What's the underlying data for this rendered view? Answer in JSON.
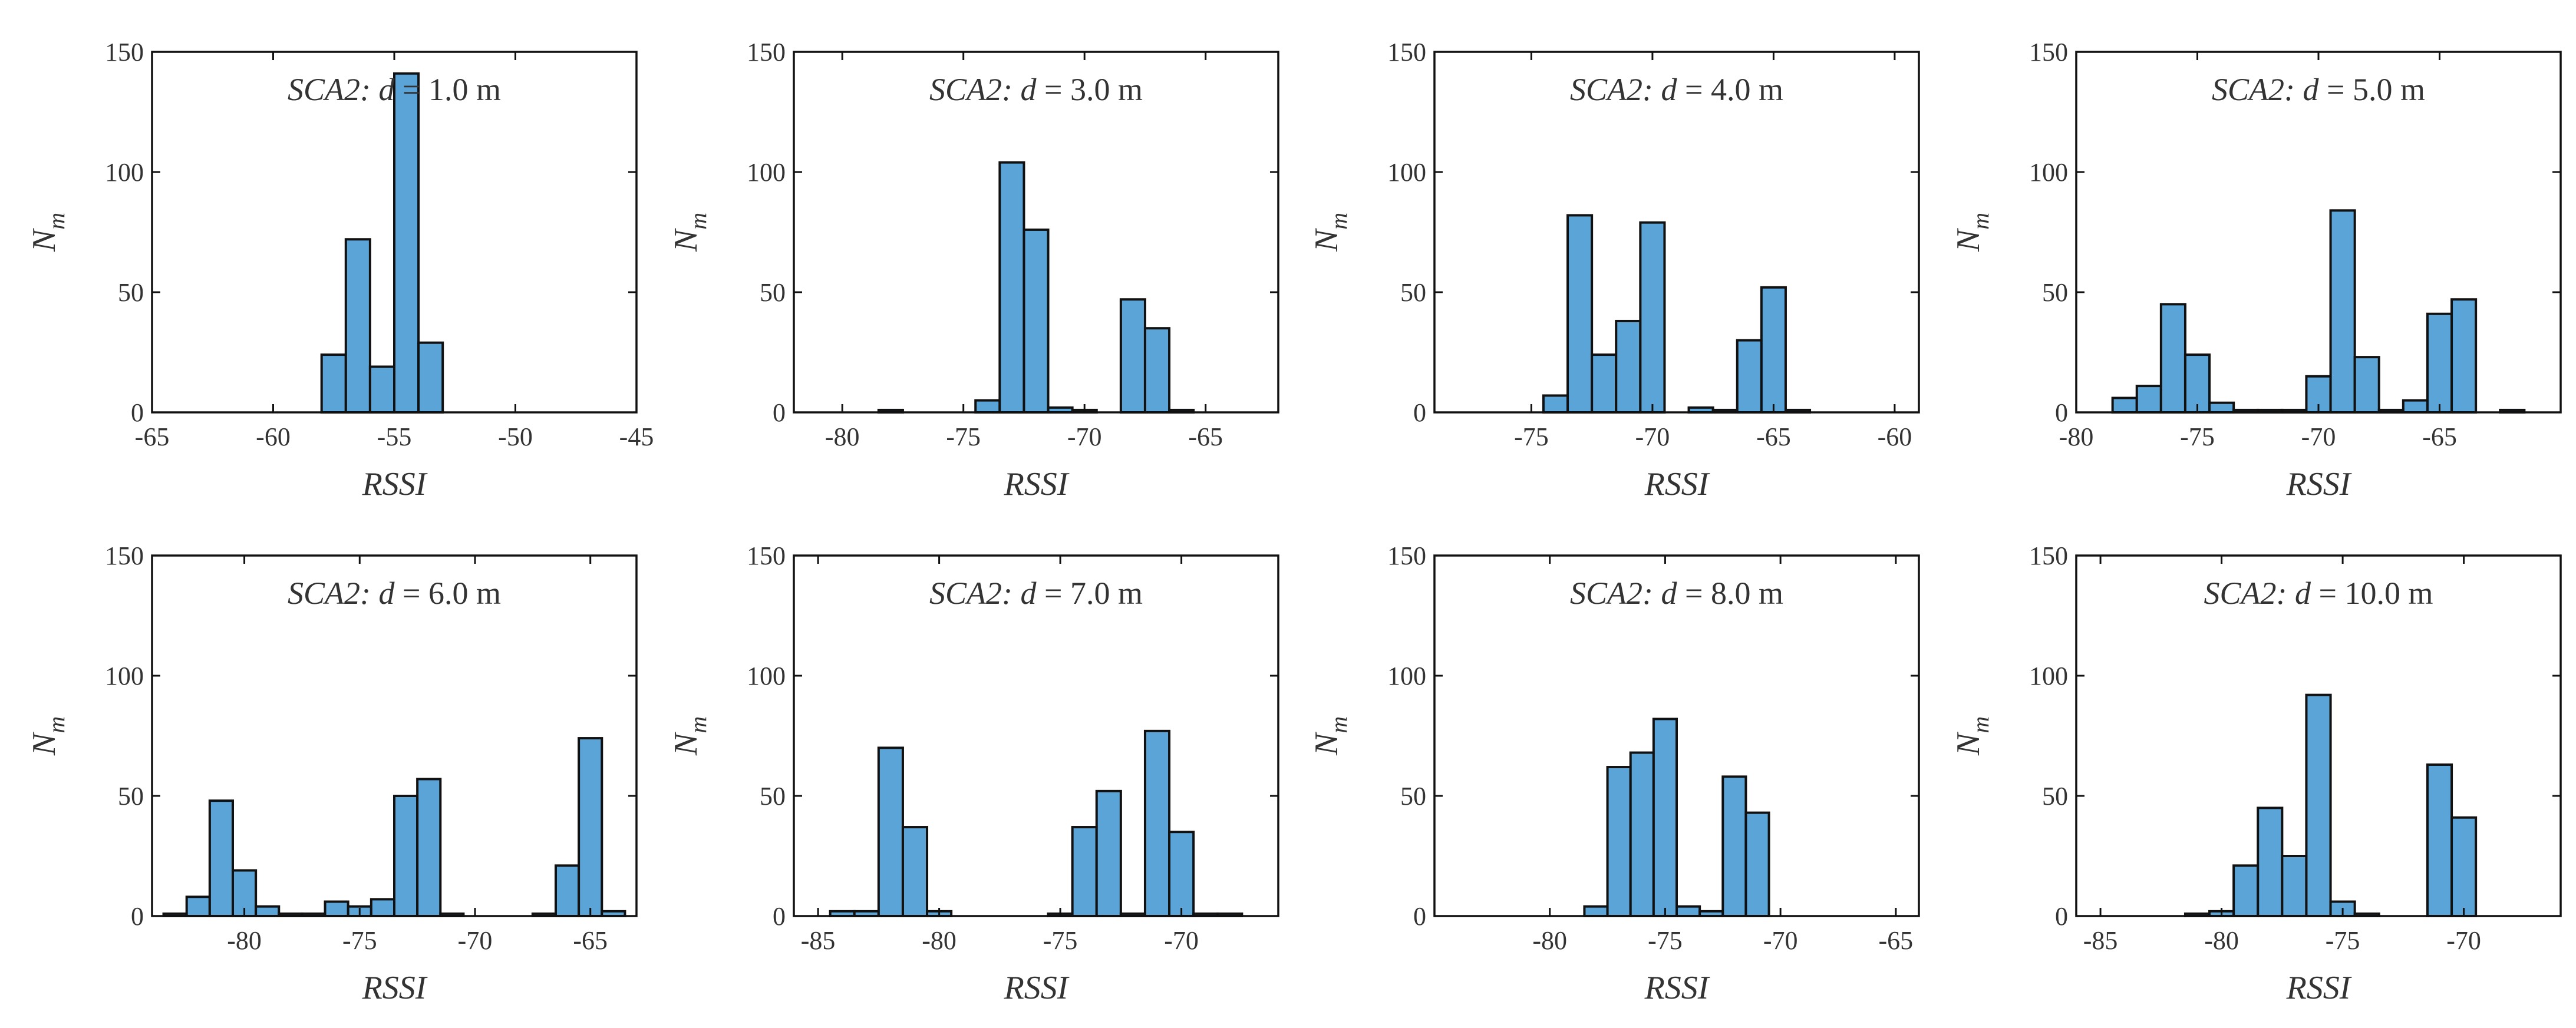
{
  "figure": {
    "subtitle_prefix": "SCA2:",
    "d_symbol": "d",
    "eq_sign": "=",
    "unit": "m"
  },
  "colors": {
    "bar_fill": "#5aa4d8",
    "bar_edge": "#111111",
    "axes": "#111111",
    "text": "#333333"
  },
  "chart_data": [
    {
      "type": "bar",
      "title": "SCA2: d = 1.0 m",
      "distance": "1.0",
      "xlabel": "RSSI",
      "ylabel": "N",
      "ylabel_sub": "m",
      "xlim": [
        -65,
        -45
      ],
      "ylim": [
        0,
        150
      ],
      "xticks": [
        -65,
        -60,
        -55,
        -50,
        -45
      ],
      "yticks": [
        0,
        50,
        100,
        150
      ],
      "bin_width": 1,
      "bins": [
        [
          -57.5,
          24
        ],
        [
          -56.5,
          72
        ],
        [
          -55.5,
          19
        ],
        [
          -54.5,
          141
        ],
        [
          -53.5,
          29
        ]
      ]
    },
    {
      "type": "bar",
      "title": "SCA2: d = 3.0 m",
      "distance": "3.0",
      "xlabel": "RSSI",
      "ylabel": "N",
      "ylabel_sub": "m",
      "xlim": [
        -82,
        -62
      ],
      "ylim": [
        0,
        150
      ],
      "xticks": [
        -80,
        -75,
        -70,
        -65
      ],
      "yticks": [
        0,
        50,
        100,
        150
      ],
      "bin_width": 1,
      "bins": [
        [
          -78,
          1
        ],
        [
          -74,
          5
        ],
        [
          -73,
          104
        ],
        [
          -72,
          76
        ],
        [
          -71,
          2
        ],
        [
          -70,
          1
        ],
        [
          -68,
          47
        ],
        [
          -67,
          35
        ],
        [
          -66,
          1
        ]
      ]
    },
    {
      "type": "bar",
      "title": "SCA2: d = 4.0 m",
      "distance": "4.0",
      "xlabel": "RSSI",
      "ylabel": "N",
      "ylabel_sub": "m",
      "xlim": [
        -79,
        -59
      ],
      "ylim": [
        0,
        150
      ],
      "xticks": [
        -75,
        -70,
        -65,
        -60
      ],
      "yticks": [
        0,
        50,
        100,
        150
      ],
      "bin_width": 1,
      "bins": [
        [
          -74,
          7
        ],
        [
          -73,
          82
        ],
        [
          -72,
          24
        ],
        [
          -71,
          38
        ],
        [
          -70,
          79
        ],
        [
          -68,
          2
        ],
        [
          -67,
          1
        ],
        [
          -66,
          30
        ],
        [
          -65,
          52
        ],
        [
          -64,
          1
        ]
      ]
    },
    {
      "type": "bar",
      "title": "SCA2: d = 5.0 m",
      "distance": "5.0",
      "xlabel": "RSSI",
      "ylabel": "N",
      "ylabel_sub": "m",
      "xlim": [
        -80,
        -60
      ],
      "ylim": [
        0,
        150
      ],
      "xticks": [
        -80,
        -75,
        -70,
        -65
      ],
      "yticks": [
        0,
        50,
        100,
        150
      ],
      "bin_width": 1,
      "bins": [
        [
          -78,
          6
        ],
        [
          -77,
          11
        ],
        [
          -76,
          45
        ],
        [
          -75,
          24
        ],
        [
          -74,
          4
        ],
        [
          -73,
          1
        ],
        [
          -72,
          1
        ],
        [
          -71,
          1
        ],
        [
          -70,
          15
        ],
        [
          -69,
          84
        ],
        [
          -68,
          23
        ],
        [
          -67,
          1
        ],
        [
          -66,
          5
        ],
        [
          -65,
          41
        ],
        [
          -64,
          47
        ],
        [
          -62,
          1
        ]
      ]
    },
    {
      "type": "bar",
      "title": "SCA2: d = 6.0 m",
      "distance": "6.0",
      "xlabel": "RSSI",
      "ylabel": "N",
      "ylabel_sub": "m",
      "xlim": [
        -84,
        -63
      ],
      "ylim": [
        0,
        150
      ],
      "xticks": [
        -80,
        -75,
        -70,
        -65
      ],
      "yticks": [
        0,
        50,
        100,
        150
      ],
      "bin_width": 1,
      "bins": [
        [
          -83,
          1
        ],
        [
          -82,
          8
        ],
        [
          -81,
          48
        ],
        [
          -80,
          19
        ],
        [
          -79,
          4
        ],
        [
          -78,
          1
        ],
        [
          -77,
          1
        ],
        [
          -76,
          6
        ],
        [
          -75,
          4
        ],
        [
          -74,
          7
        ],
        [
          -73,
          50
        ],
        [
          -72,
          57
        ],
        [
          -71,
          1
        ],
        [
          -67,
          1
        ],
        [
          -66,
          21
        ],
        [
          -65,
          74
        ],
        [
          -64,
          2
        ]
      ]
    },
    {
      "type": "bar",
      "title": "SCA2: d = 7.0 m",
      "distance": "7.0",
      "xlabel": "RSSI",
      "ylabel": "N",
      "ylabel_sub": "m",
      "xlim": [
        -86,
        -66
      ],
      "ylim": [
        0,
        150
      ],
      "xticks": [
        -85,
        -80,
        -75,
        -70
      ],
      "yticks": [
        0,
        50,
        100,
        150
      ],
      "bin_width": 1,
      "bins": [
        [
          -84,
          2
        ],
        [
          -83,
          2
        ],
        [
          -82,
          70
        ],
        [
          -81,
          37
        ],
        [
          -80,
          2
        ],
        [
          -75,
          1
        ],
        [
          -74,
          37
        ],
        [
          -73,
          52
        ],
        [
          -72,
          1
        ],
        [
          -71,
          77
        ],
        [
          -70,
          35
        ],
        [
          -69,
          1
        ],
        [
          -68,
          1
        ]
      ]
    },
    {
      "type": "bar",
      "title": "SCA2: d = 8.0 m",
      "distance": "8.0",
      "xlabel": "RSSI",
      "ylabel": "N",
      "ylabel_sub": "m",
      "xlim": [
        -85,
        -64
      ],
      "ylim": [
        0,
        150
      ],
      "xticks": [
        -80,
        -75,
        -70,
        -65
      ],
      "yticks": [
        0,
        50,
        100,
        150
      ],
      "bin_width": 1,
      "bins": [
        [
          -78,
          4
        ],
        [
          -77,
          62
        ],
        [
          -76,
          68
        ],
        [
          -75,
          82
        ],
        [
          -74,
          4
        ],
        [
          -73,
          2
        ],
        [
          -72,
          58
        ],
        [
          -71,
          43
        ]
      ]
    },
    {
      "type": "bar",
      "title": "SCA2: d = 10.0 m",
      "distance": "10.0",
      "xlabel": "RSSI",
      "ylabel": "N",
      "ylabel_sub": "m",
      "xlim": [
        -86,
        -66
      ],
      "ylim": [
        0,
        150
      ],
      "xticks": [
        -85,
        -80,
        -75,
        -70
      ],
      "yticks": [
        0,
        50,
        100,
        150
      ],
      "bin_width": 1,
      "bins": [
        [
          -81,
          1
        ],
        [
          -80,
          2
        ],
        [
          -79,
          21
        ],
        [
          -78,
          45
        ],
        [
          -77,
          25
        ],
        [
          -76,
          92
        ],
        [
          -75,
          6
        ],
        [
          -74,
          1
        ],
        [
          -71,
          63
        ],
        [
          -70,
          41
        ]
      ]
    }
  ]
}
